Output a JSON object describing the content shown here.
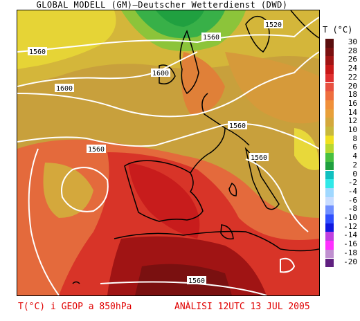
{
  "title": "GLOBAL MODELL (GM)—Deutscher Wetterdienst (DWD)",
  "legend": {
    "title": "T (°C)",
    "entries": [
      {
        "label": "30",
        "color": "#5a0e0e"
      },
      {
        "label": "28",
        "color": "#7a1010"
      },
      {
        "label": "26",
        "color": "#a01414"
      },
      {
        "label": "24",
        "color": "#c81818"
      },
      {
        "label": "22",
        "color": "#e03030"
      },
      {
        "label": "20",
        "color": "#e85040"
      },
      {
        "label": "18",
        "color": "#ee6e3e"
      },
      {
        "label": "16",
        "color": "#f0903a"
      },
      {
        "label": "14",
        "color": "#e8a03a"
      },
      {
        "label": "12",
        "color": "#d4a83c"
      },
      {
        "label": "10",
        "color": "#c8b83c"
      },
      {
        "label": "8",
        "color": "#f0e020"
      },
      {
        "label": "6",
        "color": "#b8d830"
      },
      {
        "label": "4",
        "color": "#48c040"
      },
      {
        "label": "2",
        "color": "#20a040"
      },
      {
        "label": "0",
        "color": "#10c0c0"
      },
      {
        "label": "-2",
        "color": "#30e8e8"
      },
      {
        "label": "-4",
        "color": "#a0d8ff"
      },
      {
        "label": "-6",
        "color": "#c8dcff"
      },
      {
        "label": "-8",
        "color": "#7090ff"
      },
      {
        "label": "-10",
        "color": "#3050ff"
      },
      {
        "label": "-12",
        "color": "#1018e0"
      },
      {
        "label": "-14",
        "color": "#c040e0"
      },
      {
        "label": "-16",
        "color": "#ff30ff"
      },
      {
        "label": "-18",
        "color": "#c090d0"
      },
      {
        "label": "-20",
        "color": "#602080"
      }
    ]
  },
  "contour_labels": [
    {
      "text": "1560"
    },
    {
      "text": "1520"
    },
    {
      "text": "1560"
    },
    {
      "text": "1600"
    },
    {
      "text": "1600"
    },
    {
      "text": "1560"
    },
    {
      "text": "1560"
    },
    {
      "text": "1560"
    },
    {
      "text": "1560"
    }
  ],
  "footer": {
    "left": "T(°C) i GEOP a 850hPa",
    "right": "ANÀLISI 12UTC 13 JUL 2005"
  }
}
